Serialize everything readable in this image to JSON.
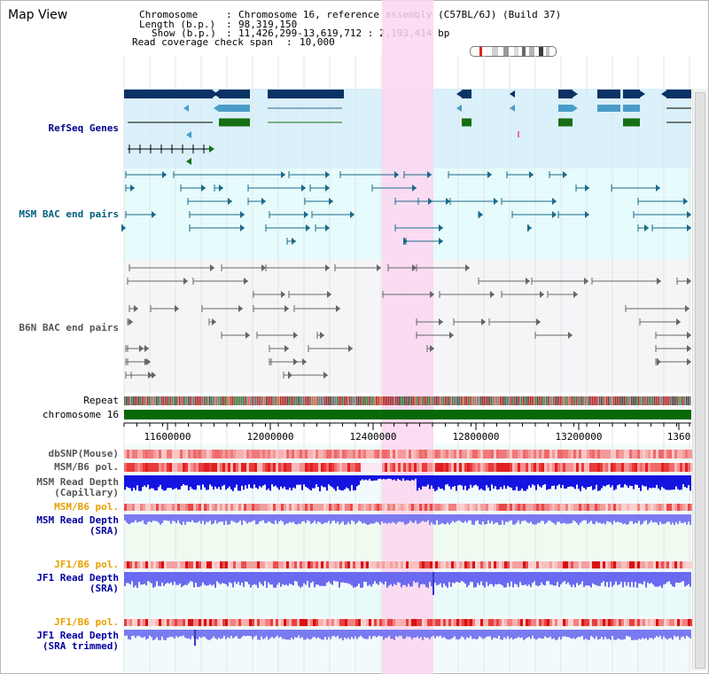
{
  "title": "Map View",
  "info": {
    "chromosome_label": "Chromosome",
    "chromosome_value": "Chromosome 16, reference assembly (C57BL/6J) (Build 37)",
    "length_label": "Length (b.p.)",
    "length_value": "98,319,150",
    "show_label": "Show (b.p.)",
    "show_value": "11,426,299-13,619,712 : 2,193,414 bp",
    "coverage_label": "Read coverage check span",
    "coverage_value": "10,000"
  },
  "tracks": {
    "refseq": "RefSeq Genes",
    "msm_bac": "MSM BAC end pairs",
    "b6n_bac": "B6N BAC end pairs",
    "repeat": "Repeat",
    "chromosome": "chromosome 16",
    "dbsnp": "dbSNP(Mouse)",
    "msm_b6_pol": "MSM/B6 pol.",
    "msm_depth_cap_1": "MSM Read Depth",
    "msm_depth_cap_2": "(Capillary)",
    "msm_b6_pol_2": "MSM/B6 pol.",
    "msm_depth_sra_1": "MSM Read Depth",
    "msm_depth_sra_2": "(SRA)",
    "jf1_pol": "JF1/B6 pol.",
    "jf1_depth_1": "JF1 Read Depth",
    "jf1_depth_2": "(SRA)",
    "jf1_pol_2": "JF1/B6 pol.",
    "jf1_trim_1": "JF1 Read Depth",
    "jf1_trim_2": "(SRA trimmed)"
  },
  "ruler": {
    "ticks": [
      "11600000",
      "12000000",
      "12400000",
      "12800000",
      "13200000",
      "1360"
    ]
  },
  "colors": {
    "refseq_bg": "#daf0fa",
    "msm_bg": "#e6fbfb",
    "b6n_bg": "#f5f5f8",
    "highlight": "#fbd6f0",
    "gene_navy": "#0a3264",
    "gene_blue": "#4a9cc8",
    "gene_green": "#157015",
    "msm_pair": "#1a6a8a",
    "b6n_pair": "#666666",
    "chromosome_bar": "#086808",
    "label_navy": "#00008b",
    "label_teal": "#006080",
    "label_orange": "#e8a000",
    "label_blue": "#0000a0"
  }
}
